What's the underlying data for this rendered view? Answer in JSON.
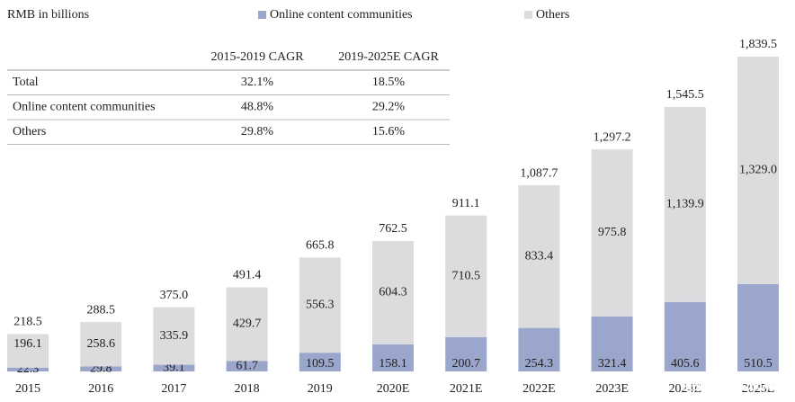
{
  "chart_data": {
    "type": "stacked_bar",
    "unit_label": "RMB in billions",
    "categories": [
      "2015",
      "2016",
      "2017",
      "2018",
      "2019",
      "2020E",
      "2021E",
      "2022E",
      "2023E",
      "2024E",
      "2025E"
    ],
    "series": [
      {
        "name": "Online content communities",
        "color": "#9ba6cc",
        "values": [
          22.3,
          29.8,
          39.1,
          61.7,
          109.5,
          158.1,
          200.7,
          254.3,
          321.4,
          405.6,
          510.5
        ],
        "value_labels": [
          "22.3",
          "29.8",
          "39.1",
          "61.7",
          "109.5",
          "158.1",
          "200.7",
          "254.3",
          "321.4",
          "405.6",
          "510.5"
        ]
      },
      {
        "name": "Others",
        "color": "#dcdcdf",
        "values": [
          196.1,
          258.6,
          335.9,
          429.7,
          556.3,
          604.3,
          710.5,
          833.4,
          975.8,
          1139.9,
          1329.0
        ],
        "value_labels": [
          "196.1",
          "258.6",
          "335.9",
          "429.7",
          "556.3",
          "604.3",
          "710.5",
          "833.4",
          "975.8",
          "1,139.9",
          "1,329.0"
        ]
      }
    ],
    "totals": [
      218.5,
      288.5,
      375.0,
      491.4,
      665.8,
      762.5,
      911.1,
      1087.7,
      1297.2,
      1545.5,
      1839.5
    ],
    "total_labels": [
      "218.5",
      "288.5",
      "375.0",
      "491.4",
      "665.8",
      "762.5",
      "911.1",
      "1,087.7",
      "1,297.2",
      "1,545.5",
      "1,839.5"
    ],
    "table": {
      "columns": [
        "2015-2019 CAGR",
        "2019-2025E CAGR"
      ],
      "rows": [
        {
          "label": "Total",
          "cells": [
            "32.1%",
            "18.5%"
          ]
        },
        {
          "label": "Online content communities",
          "cells": [
            "48.8%",
            "29.2%"
          ]
        },
        {
          "label": "Others",
          "cells": [
            "29.8%",
            "15.6%"
          ]
        }
      ]
    },
    "watermark": "搜狐号@北京海证"
  }
}
